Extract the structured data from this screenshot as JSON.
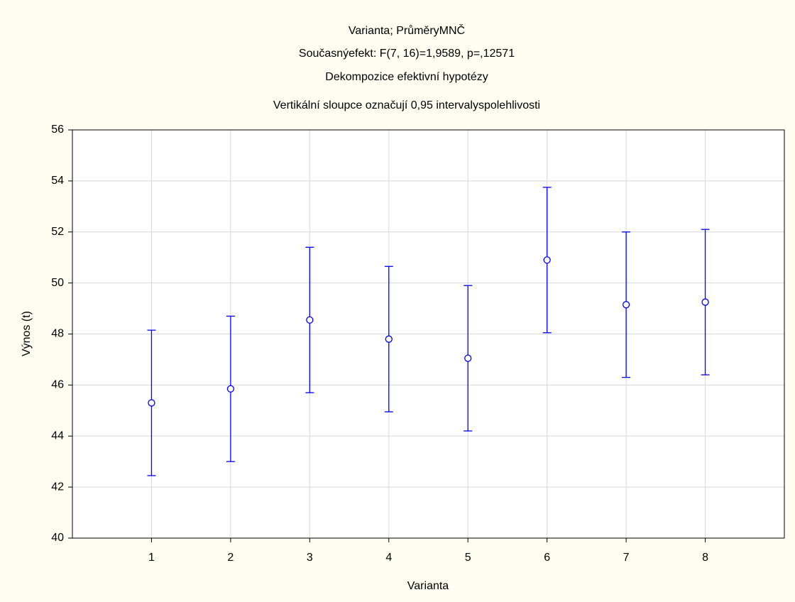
{
  "chart_data": {
    "type": "errorbar",
    "title": "Varianta; PrůměryMNČ",
    "subtitles": [
      "Současnýefekt: F(7, 16)=1,9589, p=,12571",
      "Dekompozice efektivní hypotézy",
      "Vertikální sloupce označují 0,95 intervalyspolehlivosti"
    ],
    "xlabel": "Varianta",
    "ylabel": "Výnos (t)",
    "categories": [
      "1",
      "2",
      "3",
      "4",
      "5",
      "6",
      "7",
      "8"
    ],
    "values": [
      45.3,
      45.85,
      48.55,
      47.8,
      47.05,
      50.9,
      49.15,
      49.25
    ],
    "errors": [
      2.85,
      2.85,
      2.85,
      2.85,
      2.85,
      2.85,
      2.85,
      2.85
    ],
    "color": "#0000ff",
    "ylim": [
      40,
      56
    ],
    "yticks": [
      40,
      42,
      44,
      46,
      48,
      50,
      52,
      54,
      56
    ],
    "grid": true
  }
}
